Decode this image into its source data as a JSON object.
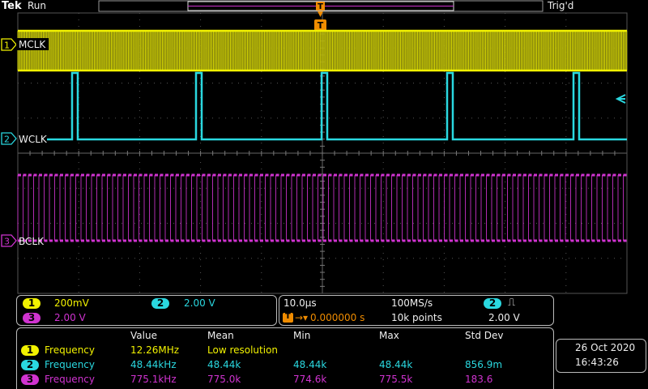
{
  "header": {
    "brand": "Tek",
    "status": "Run",
    "trigger_status": "Trig'd",
    "trigger_marker": "T"
  },
  "channels": [
    {
      "num": "1",
      "label": "MCLK",
      "color": "#f2f200"
    },
    {
      "num": "2",
      "label": "WCLK",
      "color": "#2ad8e0"
    },
    {
      "num": "3",
      "label": "BCLK",
      "color": "#d033d0"
    }
  ],
  "vertical": {
    "ch1_scale": "200mV",
    "ch2_scale": "2.00 V",
    "ch3_scale": "2.00 V"
  },
  "horizontal": {
    "time_div": "10.0µs",
    "sample_rate": "100MS/s",
    "trigger_delay": "0.000000 s",
    "record_length": "10k points",
    "trigger_channel": "2",
    "trigger_slope": "⎍",
    "trigger_level": "2.00 V"
  },
  "measurements": {
    "headers": [
      "Value",
      "Mean",
      "Min",
      "Max",
      "Std Dev"
    ],
    "rows": [
      {
        "ch": "1",
        "name": "Frequency",
        "value": "12.26MHz",
        "mean": "Low resolution",
        "min": "",
        "max": "",
        "std": ""
      },
      {
        "ch": "2",
        "name": "Frequency",
        "value": "48.44kHz",
        "mean": "48.44k",
        "min": "48.44k",
        "max": "48.44k",
        "std": "856.9m"
      },
      {
        "ch": "3",
        "name": "Frequency",
        "value": "775.1kHz",
        "mean": "775.0k",
        "min": "774.6k",
        "max": "775.5k",
        "std": "183.6"
      }
    ]
  },
  "clock": {
    "date": "26 Oct  2020",
    "time": "16:43:26"
  }
}
